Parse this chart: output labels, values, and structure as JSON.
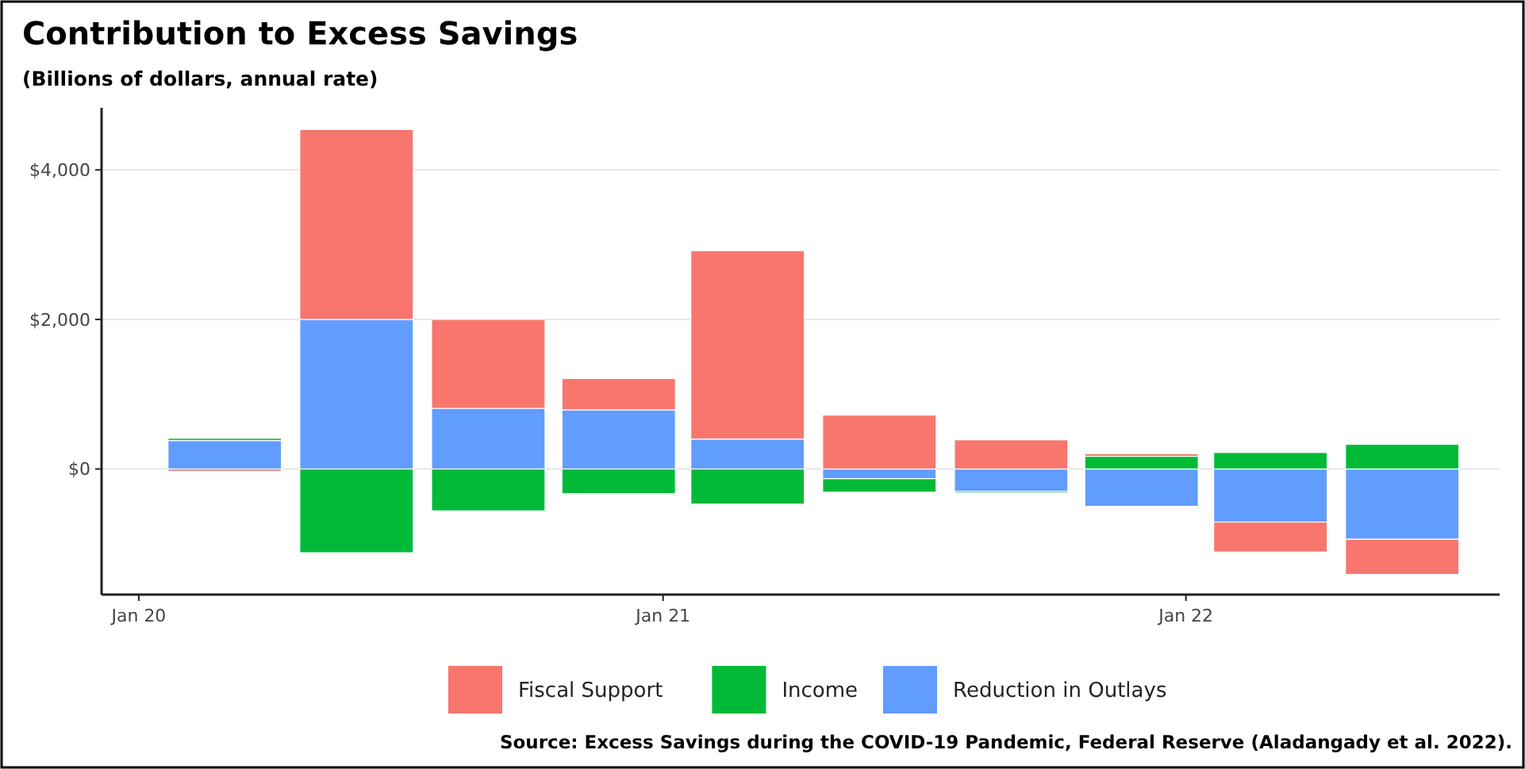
{
  "chart_data": {
    "type": "bar",
    "title": "Contribution to Excess Savings",
    "subtitle": "(Billions of dollars, annual rate)",
    "x": [
      "2020-03-01",
      "2020-06-01",
      "2020-09-01",
      "2020-12-01",
      "2021-03-01",
      "2021-06-01",
      "2021-09-01",
      "2021-12-01",
      "2022-03-01",
      "2022-06-01"
    ],
    "stacked": true,
    "series": [
      {
        "name": "Reduction in Outlays",
        "color": "#619cff",
        "values": [
          380,
          2000,
          810,
          790,
          400,
          -130,
          -300,
          -500,
          -710,
          -940
        ]
      },
      {
        "name": "Income",
        "color": "#00ba38",
        "values": [
          30,
          -1120,
          -560,
          -330,
          -470,
          -180,
          -20,
          170,
          220,
          330
        ]
      },
      {
        "name": "Fiscal Support",
        "color": "#f8766d",
        "values": [
          -30,
          2540,
          1190,
          420,
          2520,
          720,
          390,
          35,
          -400,
          -470
        ]
      }
    ],
    "xlim": [
      "2019-12-06",
      "2022-08-08"
    ],
    "xticks": [
      {
        "value": "2020-01-01",
        "label": "Jan 20"
      },
      {
        "value": "2021-01-01",
        "label": "Jan 21"
      },
      {
        "value": "2022-01-01",
        "label": "Jan 22"
      }
    ],
    "ylim": [
      -1680,
      4830
    ],
    "yticks": [
      {
        "value": 0,
        "label": "$0"
      },
      {
        "value": 2000,
        "label": "$2,000"
      },
      {
        "value": 4000,
        "label": "$4,000"
      }
    ],
    "grid": "y",
    "legend": "bottom",
    "annotations": [
      "Source: Excess Savings during the COVID-19 Pandemic, Federal Reserve (Aladangady et al. 2022)."
    ]
  }
}
